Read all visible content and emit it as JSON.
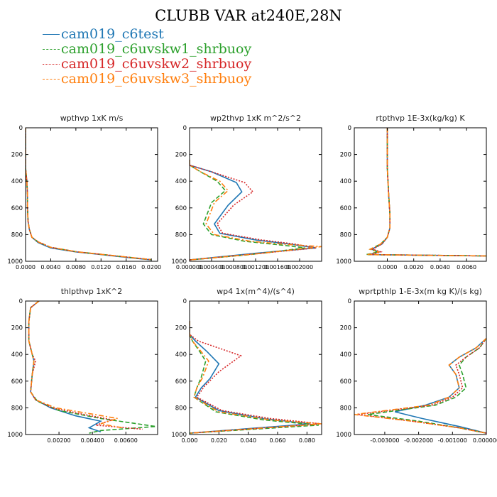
{
  "figure": {
    "title": "CLUBB VAR at240E,28N"
  },
  "legend": [
    {
      "label": "cam019_c6test",
      "color": "#1f77b4",
      "dash": "solid"
    },
    {
      "label": "cam019_c6uvskw1_shrbuoy",
      "color": "#2ca02c",
      "dash": "dashed"
    },
    {
      "label": "cam019_c6uvskw2_shrbuoy",
      "color": "#d62728",
      "dash": "dotted"
    },
    {
      "label": "cam019_c6uvskw3_shrbuoy",
      "color": "#ff7f0e",
      "dash": "dashdot"
    }
  ],
  "chart_data": [
    {
      "type": "line",
      "title": "wpthvp  1xK m/s",
      "xlim": [
        0,
        0.021
      ],
      "ylim": [
        1000,
        0
      ],
      "xticks": [
        0.0,
        0.004,
        0.008,
        0.012,
        0.016,
        0.02
      ],
      "xticklabels": [
        "0.0000",
        "0.0040",
        "0.0080",
        "0.0120",
        "0.0160",
        "0.0200"
      ],
      "yticks": [
        0,
        200,
        400,
        600,
        800,
        1000
      ],
      "yticklabels": [
        "0",
        "200",
        "400",
        "600",
        "800",
        "1000"
      ],
      "series": [
        {
          "name": "cam019_c6test",
          "x": [
            0.0,
            0.0,
            0.0002,
            0.0003,
            0.0003,
            0.0004,
            0.0006,
            0.001,
            0.002,
            0.004,
            0.008,
            0.012,
            0.016,
            0.02
          ],
          "y": [
            0,
            300,
            400,
            500,
            600,
            700,
            760,
            820,
            860,
            900,
            930,
            950,
            970,
            990
          ]
        },
        {
          "name": "cam019_c6uvskw1_shrbuoy",
          "x": [
            0.0,
            0.0,
            0.0002,
            0.0003,
            0.0003,
            0.0004,
            0.0006,
            0.001,
            0.002,
            0.004,
            0.008,
            0.012,
            0.016,
            0.02
          ],
          "y": [
            0,
            300,
            400,
            500,
            600,
            700,
            760,
            820,
            855,
            895,
            928,
            948,
            968,
            988
          ]
        },
        {
          "name": "cam019_c6uvskw2_shrbuoy",
          "x": [
            0.0,
            0.0,
            0.0002,
            0.0003,
            0.0003,
            0.0004,
            0.0006,
            0.001,
            0.002,
            0.004,
            0.008,
            0.012,
            0.016,
            0.02
          ],
          "y": [
            0,
            300,
            400,
            500,
            600,
            700,
            760,
            820,
            855,
            895,
            928,
            948,
            968,
            988
          ]
        },
        {
          "name": "cam019_c6uvskw3_shrbuoy",
          "x": [
            0.0,
            0.0,
            0.0002,
            0.0003,
            0.0003,
            0.0004,
            0.0006,
            0.001,
            0.002,
            0.004,
            0.008,
            0.012,
            0.016,
            0.02
          ],
          "y": [
            0,
            300,
            400,
            500,
            600,
            700,
            760,
            820,
            855,
            895,
            928,
            948,
            968,
            988
          ]
        }
      ]
    },
    {
      "type": "line",
      "title": "wp2thvp  1xK m^2/s^2",
      "xlim": [
        0,
        0.0024
      ],
      "ylim": [
        1000,
        0
      ],
      "xticks": [
        0.0,
        0.0004,
        0.0008,
        0.0012,
        0.0016,
        0.002
      ],
      "xticklabels": [
        "0.000000",
        "0.000400",
        "0.000800",
        "0.001200",
        "0.001600",
        "0.002000"
      ],
      "yticks": [
        0,
        200,
        400,
        600,
        800,
        1000
      ],
      "yticklabels": [
        "0",
        "200",
        "400",
        "600",
        "800",
        "1000"
      ],
      "series": [
        {
          "name": "cam019_c6test",
          "x": [
            0.0,
            0.0,
            0.0004,
            0.00085,
            0.00095,
            0.0007,
            0.00045,
            0.00055,
            0.0012,
            0.0018,
            0.0023,
            0.0012,
            0.0
          ],
          "y": [
            240,
            280,
            330,
            410,
            480,
            580,
            720,
            790,
            840,
            870,
            900,
            940,
            990
          ]
        },
        {
          "name": "cam019_c6uvskw1_shrbuoy",
          "x": [
            0.0,
            0.0,
            0.0002,
            0.0005,
            0.00065,
            0.0004,
            0.00025,
            0.0004,
            0.001,
            0.0017,
            0.0021,
            0.0011,
            0.0
          ],
          "y": [
            240,
            280,
            330,
            400,
            470,
            560,
            720,
            800,
            850,
            880,
            900,
            950,
            990
          ]
        },
        {
          "name": "cam019_c6uvskw2_shrbuoy",
          "x": [
            0.0,
            0.0,
            0.0004,
            0.001,
            0.00115,
            0.0008,
            0.0005,
            0.0006,
            0.0013,
            0.0019,
            0.0023,
            0.0013,
            0.0
          ],
          "y": [
            240,
            280,
            330,
            410,
            480,
            580,
            720,
            790,
            840,
            870,
            900,
            940,
            990
          ]
        },
        {
          "name": "cam019_c6uvskw3_shrbuoy",
          "x": [
            0.0,
            0.0,
            0.0002,
            0.00055,
            0.0007,
            0.00045,
            0.0003,
            0.00045,
            0.0011,
            0.0018,
            0.0024,
            0.0012,
            0.0
          ],
          "y": [
            240,
            280,
            330,
            400,
            470,
            560,
            720,
            800,
            850,
            875,
            890,
            945,
            990
          ]
        }
      ]
    },
    {
      "type": "line",
      "title": "rtpthvp  1E-3x(kg/kg) K",
      "xlim": [
        -0.0025,
        0.0075
      ],
      "ylim": [
        1000,
        0
      ],
      "xticks": [
        0.0,
        0.002,
        0.004,
        0.006
      ],
      "xticklabels": [
        "0.0000",
        "0.0020",
        "0.0040",
        "0.0060"
      ],
      "yticks": [
        0,
        200,
        400,
        600,
        800,
        1000
      ],
      "yticklabels": [
        "0",
        "200",
        "400",
        "600",
        "800",
        "1000"
      ],
      "series": [
        {
          "name": "cam019_c6test",
          "x": [
            0.0,
            0.0,
            0.0001,
            0.0002,
            0.0002,
            0.0,
            -0.0004,
            -0.0012,
            -0.0006,
            -0.0014,
            0.0075
          ],
          "y": [
            0,
            300,
            500,
            650,
            750,
            820,
            870,
            910,
            930,
            950,
            960
          ]
        },
        {
          "name": "cam019_c6uvskw1_shrbuoy",
          "x": [
            0.0,
            0.0,
            0.0001,
            0.0002,
            0.0002,
            0.0,
            -0.0005,
            -0.0013,
            -0.0007,
            -0.0016,
            0.0075
          ],
          "y": [
            0,
            300,
            500,
            650,
            750,
            820,
            870,
            910,
            930,
            950,
            960
          ]
        },
        {
          "name": "cam019_c6uvskw2_shrbuoy",
          "x": [
            0.0,
            0.0,
            0.0001,
            0.0002,
            0.0002,
            0.0,
            -0.0004,
            -0.0011,
            -0.0005,
            -0.0013,
            0.0075
          ],
          "y": [
            0,
            300,
            500,
            650,
            750,
            820,
            870,
            910,
            930,
            950,
            960
          ]
        },
        {
          "name": "cam019_c6uvskw3_shrbuoy",
          "x": [
            0.0,
            0.0,
            0.0001,
            0.0002,
            0.0002,
            0.0,
            -0.0005,
            -0.0013,
            -0.0006,
            -0.0015,
            0.0075
          ],
          "y": [
            0,
            300,
            500,
            650,
            750,
            820,
            870,
            910,
            930,
            950,
            960
          ]
        }
      ]
    },
    {
      "type": "line",
      "title": "thlpthvp  1xK^2",
      "xlim": [
        0,
        0.0079
      ],
      "ylim": [
        1000,
        0
      ],
      "xticks": [
        0.002,
        0.004,
        0.006
      ],
      "xticklabels": [
        "0.00200",
        "0.00400",
        "0.00600"
      ],
      "yticks": [
        0,
        200,
        400,
        600,
        800,
        1000
      ],
      "yticklabels": [
        "0",
        "200",
        "400",
        "600",
        "800",
        "1000"
      ],
      "series": [
        {
          "name": "cam019_c6test",
          "x": [
            0.0008,
            0.0003,
            0.0002,
            0.0002,
            0.0004,
            0.0005,
            0.0004,
            0.0003,
            0.0006,
            0.0015,
            0.003,
            0.0045,
            0.0038,
            0.0045
          ],
          "y": [
            0,
            50,
            150,
            300,
            400,
            450,
            550,
            680,
            740,
            800,
            860,
            900,
            950,
            980
          ]
        },
        {
          "name": "cam019_c6uvskw1_shrbuoy",
          "x": [
            0.0008,
            0.0003,
            0.0002,
            0.0002,
            0.0004,
            0.0005,
            0.0004,
            0.0003,
            0.0007,
            0.002,
            0.0045,
            0.0078,
            0.0045,
            0.0038
          ],
          "y": [
            0,
            50,
            150,
            300,
            400,
            450,
            550,
            680,
            750,
            820,
            880,
            940,
            970,
            990
          ]
        },
        {
          "name": "cam019_c6uvskw2_shrbuoy",
          "x": [
            0.0008,
            0.0003,
            0.0002,
            0.0002,
            0.0004,
            0.0006,
            0.0004,
            0.0003,
            0.0006,
            0.0016,
            0.0035,
            0.0052,
            0.0042,
            0.007
          ],
          "y": [
            0,
            50,
            150,
            300,
            400,
            450,
            550,
            680,
            740,
            800,
            850,
            890,
            930,
            960
          ]
        },
        {
          "name": "cam019_c6uvskw3_shrbuoy",
          "x": [
            0.0008,
            0.0003,
            0.0002,
            0.0002,
            0.0004,
            0.0005,
            0.0004,
            0.0003,
            0.0006,
            0.0018,
            0.0046,
            0.0055,
            0.0045,
            0.0058
          ],
          "y": [
            0,
            50,
            150,
            300,
            400,
            450,
            550,
            680,
            740,
            800,
            860,
            880,
            920,
            950
          ]
        }
      ]
    },
    {
      "type": "line",
      "title": "wp4  1x(m^4)/(s^4)",
      "xlim": [
        0,
        0.09
      ],
      "ylim": [
        1000,
        0
      ],
      "xticks": [
        0.0,
        0.02,
        0.04,
        0.06,
        0.08
      ],
      "xticklabels": [
        "0.000",
        "0.020",
        "0.040",
        "0.060",
        "0.080"
      ],
      "yticks": [
        0,
        200,
        400,
        600,
        800,
        1000
      ],
      "yticklabels": [
        "0",
        "200",
        "400",
        "600",
        "800",
        "1000"
      ],
      "series": [
        {
          "name": "cam019_c6test",
          "x": [
            0.0,
            0.0,
            0.004,
            0.012,
            0.02,
            0.014,
            0.008,
            0.004,
            0.02,
            0.05,
            0.082,
            0.0
          ],
          "y": [
            150,
            250,
            300,
            380,
            470,
            580,
            650,
            720,
            820,
            880,
            920,
            990
          ]
        },
        {
          "name": "cam019_c6uvskw1_shrbuoy",
          "x": [
            0.0,
            0.0,
            0.002,
            0.007,
            0.011,
            0.008,
            0.005,
            0.003,
            0.018,
            0.05,
            0.088,
            0.0
          ],
          "y": [
            150,
            250,
            300,
            380,
            450,
            570,
            650,
            720,
            830,
            890,
            930,
            990
          ]
        },
        {
          "name": "cam019_c6uvskw2_shrbuoy",
          "x": [
            0.0,
            0.0,
            0.006,
            0.022,
            0.035,
            0.02,
            0.01,
            0.005,
            0.022,
            0.055,
            0.09,
            0.0
          ],
          "y": [
            150,
            250,
            300,
            360,
            410,
            530,
            640,
            720,
            820,
            880,
            920,
            990
          ]
        },
        {
          "name": "cam019_c6uvskw3_shrbuoy",
          "x": [
            0.0,
            0.0,
            0.002,
            0.008,
            0.013,
            0.009,
            0.005,
            0.003,
            0.02,
            0.055,
            0.09,
            0.0
          ],
          "y": [
            150,
            250,
            300,
            380,
            450,
            570,
            650,
            720,
            830,
            890,
            920,
            990
          ]
        }
      ]
    },
    {
      "type": "line",
      "title": "wprtpthlp  1-E-3x(m kg K)/(s kg)",
      "xlim": [
        -0.0039,
        0.0
      ],
      "ylim": [
        1000,
        0
      ],
      "xticks": [
        -0.003,
        -0.002,
        -0.001,
        0.0
      ],
      "xticklabels": [
        "-0.003000",
        "-0.002000",
        "-0.001000",
        "0.000000"
      ],
      "yticks": [
        0,
        200,
        400,
        600,
        800,
        1000
      ],
      "yticklabels": [
        "0",
        "200",
        "400",
        "600",
        "800",
        "1000"
      ],
      "series": [
        {
          "name": "cam019_c6test",
          "x": [
            0.0,
            -0.0003,
            -0.0008,
            -0.0011,
            -0.0009,
            -0.0008,
            -0.0011,
            -0.0018,
            -0.0027,
            -0.0019,
            -0.0008,
            0.0
          ],
          "y": [
            280,
            350,
            420,
            480,
            550,
            650,
            720,
            780,
            830,
            880,
            940,
            990
          ]
        },
        {
          "name": "cam019_c6uvskw1_shrbuoy",
          "x": [
            0.0,
            -0.0002,
            -0.0006,
            -0.0008,
            -0.0007,
            -0.0006,
            -0.0009,
            -0.0015,
            -0.0035,
            -0.002,
            -0.0008,
            0.0
          ],
          "y": [
            280,
            350,
            420,
            480,
            550,
            650,
            720,
            780,
            850,
            900,
            950,
            990
          ]
        },
        {
          "name": "cam019_c6uvskw2_shrbuoy",
          "x": [
            0.0,
            -0.0002,
            -0.0006,
            -0.0009,
            -0.0008,
            -0.0007,
            -0.001,
            -0.0016,
            -0.0038,
            -0.0022,
            -0.0008,
            0.0
          ],
          "y": [
            280,
            350,
            420,
            480,
            550,
            650,
            720,
            780,
            850,
            900,
            950,
            990
          ]
        },
        {
          "name": "cam019_c6uvskw3_shrbuoy",
          "x": [
            0.0,
            -0.0003,
            -0.0008,
            -0.0011,
            -0.0009,
            -0.0008,
            -0.0011,
            -0.0017,
            -0.0039,
            -0.0022,
            -0.0008,
            0.0
          ],
          "y": [
            280,
            350,
            420,
            480,
            550,
            650,
            720,
            780,
            850,
            900,
            950,
            990
          ]
        }
      ]
    }
  ]
}
